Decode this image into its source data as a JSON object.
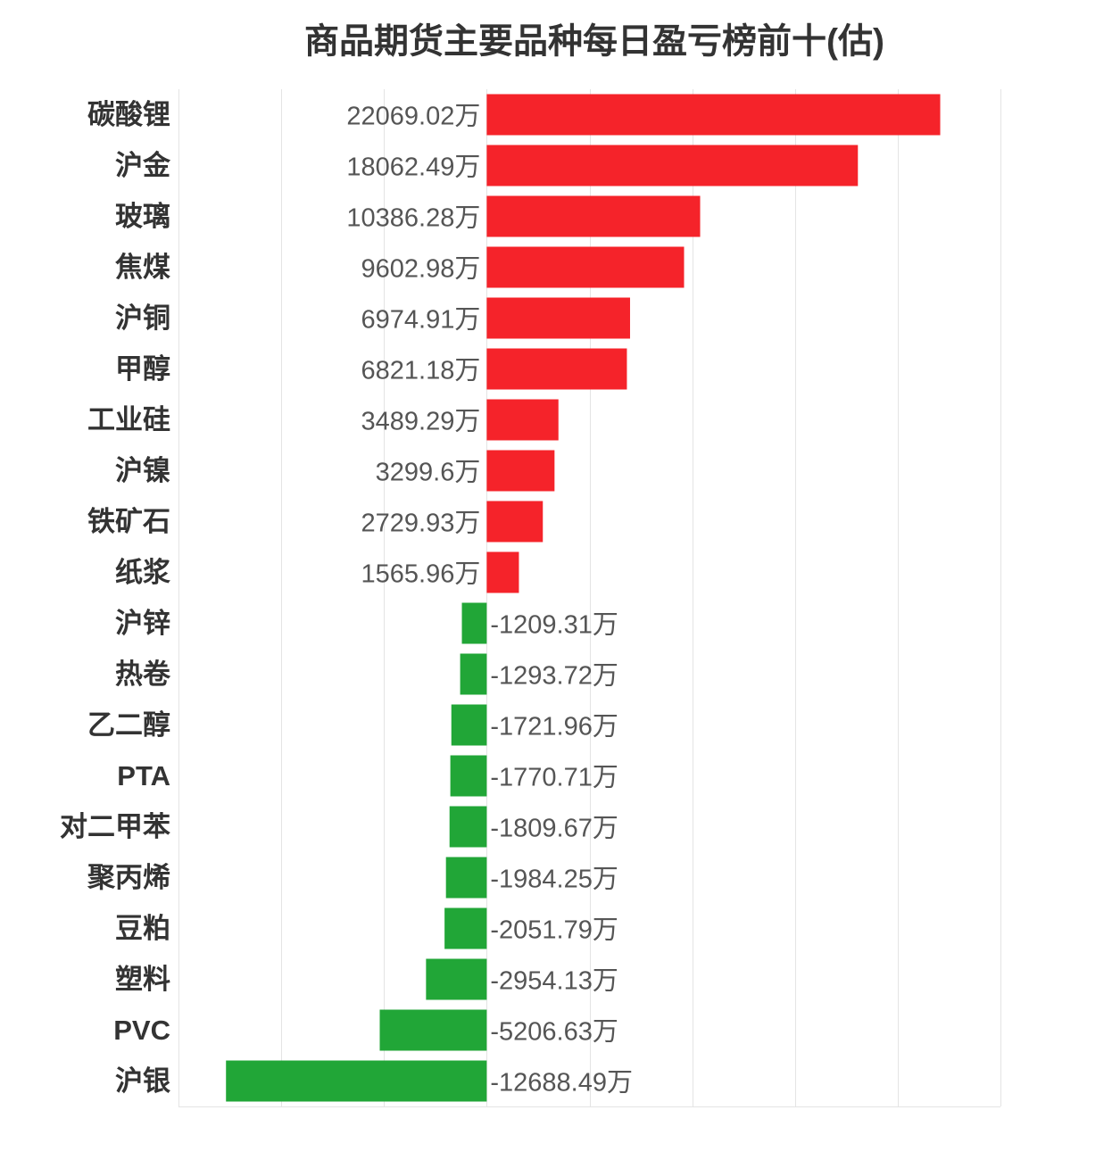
{
  "chart_data": {
    "type": "bar",
    "orientation": "horizontal",
    "title": "商品期货主要品种每日盈亏榜前十(估)",
    "categories": [
      "碳酸锂",
      "沪金",
      "玻璃",
      "焦煤",
      "沪铜",
      "甲醇",
      "工业硅",
      "沪镍",
      "铁矿石",
      "纸浆",
      "沪锌",
      "热卷",
      "乙二醇",
      "PTA",
      "对二甲苯",
      "聚丙烯",
      "豆粕",
      "塑料",
      "PVC",
      "沪银"
    ],
    "values": [
      22069.02,
      18062.49,
      10386.28,
      9602.98,
      6974.91,
      6821.18,
      3489.29,
      3299.6,
      2729.93,
      1565.96,
      -1209.31,
      -1293.72,
      -1721.96,
      -1770.71,
      -1809.67,
      -1984.25,
      -2051.79,
      -2954.13,
      -5206.63,
      -12688.49
    ],
    "value_unit": "万",
    "xlim": [
      -15000,
      25000
    ],
    "grid": true,
    "colors": {
      "positive": "#f5232a",
      "negative": "#21a637",
      "grid": "#e4e4e4"
    }
  }
}
